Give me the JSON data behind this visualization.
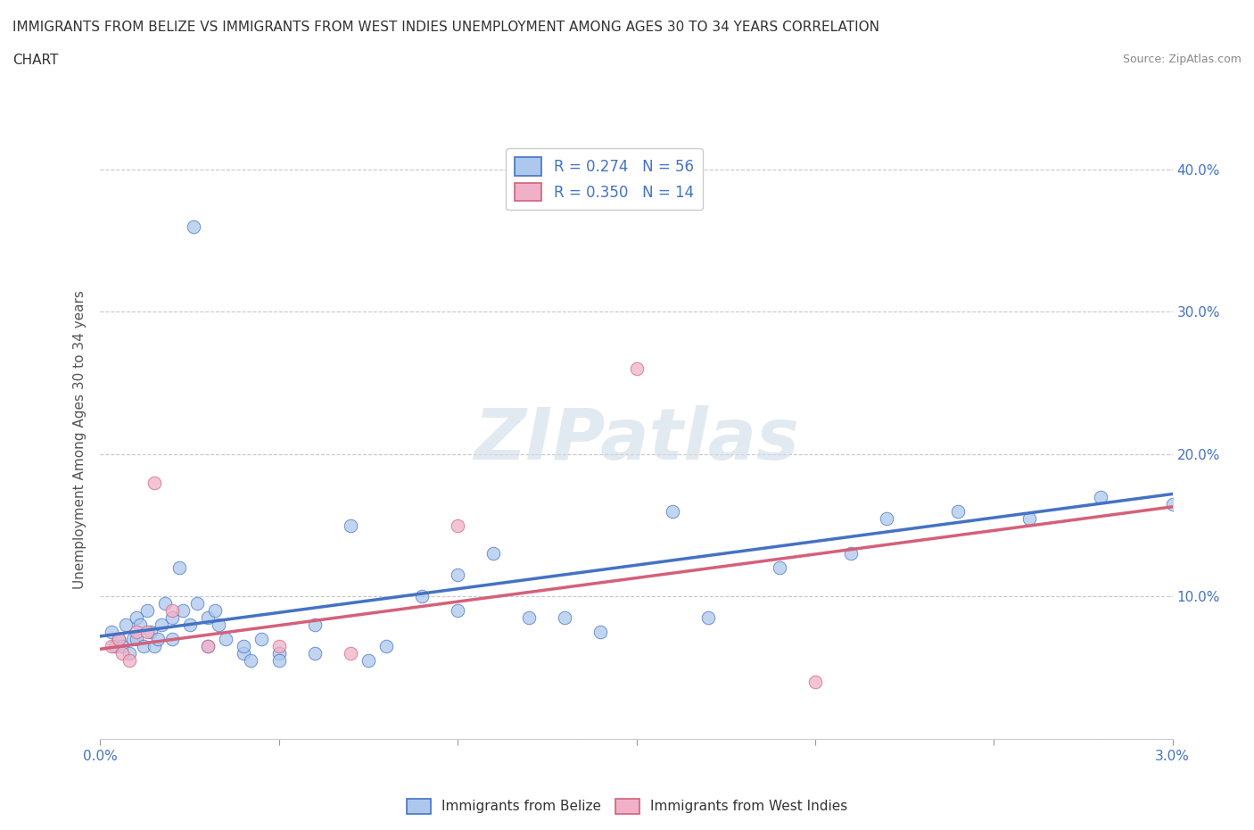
{
  "title_line1": "IMMIGRANTS FROM BELIZE VS IMMIGRANTS FROM WEST INDIES UNEMPLOYMENT AMONG AGES 30 TO 34 YEARS CORRELATION",
  "title_line2": "CHART",
  "source": "Source: ZipAtlas.com",
  "ylabel": "Unemployment Among Ages 30 to 34 years",
  "xlim": [
    0.0,
    0.03
  ],
  "ylim": [
    0.0,
    0.42
  ],
  "belize_color": "#adc8ed",
  "west_indies_color": "#f0b0c8",
  "belize_line_color": "#4472c4",
  "west_indies_line_color": "#d4607a",
  "legend_label_belize": "R = 0.274   N = 56",
  "legend_label_wi": "R = 0.350   N = 14",
  "bottom_legend_belize": "Immigrants from Belize",
  "bottom_legend_wi": "Immigrants from West Indies",
  "watermark": "ZIPatlas",
  "belize_x": [
    0.0003,
    0.0004,
    0.0005,
    0.0006,
    0.0007,
    0.0008,
    0.0009,
    0.001,
    0.001,
    0.0011,
    0.0012,
    0.0013,
    0.0014,
    0.0015,
    0.0016,
    0.0017,
    0.0018,
    0.002,
    0.002,
    0.0022,
    0.0023,
    0.0025,
    0.0026,
    0.0027,
    0.003,
    0.003,
    0.0032,
    0.0033,
    0.0035,
    0.004,
    0.004,
    0.0042,
    0.0045,
    0.005,
    0.005,
    0.006,
    0.006,
    0.007,
    0.0075,
    0.008,
    0.009,
    0.01,
    0.01,
    0.011,
    0.012,
    0.013,
    0.014,
    0.016,
    0.017,
    0.019,
    0.021,
    0.022,
    0.024,
    0.026,
    0.028,
    0.03
  ],
  "belize_y": [
    0.075,
    0.065,
    0.07,
    0.065,
    0.08,
    0.06,
    0.07,
    0.07,
    0.085,
    0.08,
    0.065,
    0.09,
    0.075,
    0.065,
    0.07,
    0.08,
    0.095,
    0.07,
    0.085,
    0.12,
    0.09,
    0.08,
    0.36,
    0.095,
    0.065,
    0.085,
    0.09,
    0.08,
    0.07,
    0.06,
    0.065,
    0.055,
    0.07,
    0.06,
    0.055,
    0.08,
    0.06,
    0.15,
    0.055,
    0.065,
    0.1,
    0.09,
    0.115,
    0.13,
    0.085,
    0.085,
    0.075,
    0.16,
    0.085,
    0.12,
    0.13,
    0.155,
    0.16,
    0.155,
    0.17,
    0.165
  ],
  "wi_x": [
    0.0003,
    0.0005,
    0.0006,
    0.0008,
    0.001,
    0.0013,
    0.0015,
    0.002,
    0.003,
    0.005,
    0.007,
    0.01,
    0.015,
    0.02
  ],
  "wi_y": [
    0.065,
    0.07,
    0.06,
    0.055,
    0.075,
    0.075,
    0.18,
    0.09,
    0.065,
    0.065,
    0.06,
    0.15,
    0.26,
    0.04
  ],
  "belize_line_x0": 0.0,
  "belize_line_y0": 0.072,
  "belize_line_x1": 0.03,
  "belize_line_y1": 0.172,
  "wi_line_x0": 0.0,
  "wi_line_y0": 0.063,
  "wi_line_x1": 0.03,
  "wi_line_y1": 0.163,
  "background_color": "#ffffff",
  "grid_color": "#c8c8c8",
  "tick_color": "#4472c4",
  "title_fontsize": 11,
  "source_fontsize": 9,
  "legend_fontsize": 12,
  "ylabel_fontsize": 11,
  "tick_fontsize": 11
}
